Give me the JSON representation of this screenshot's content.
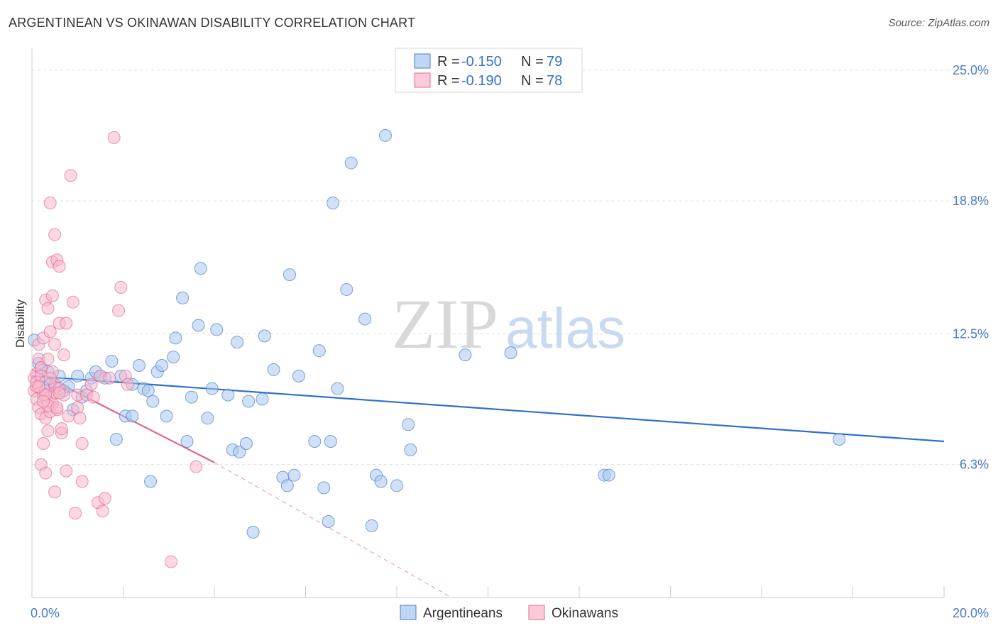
{
  "title": "ARGENTINEAN VS OKINAWAN DISABILITY CORRELATION CHART",
  "source": "Source: ZipAtlas.com",
  "watermark": {
    "zip": "ZIP",
    "atlas": "atlas"
  },
  "legend": {
    "rows": [
      {
        "r_label": "R = ",
        "r_value": "-0.150",
        "n_label": "N = ",
        "n_value": "79",
        "color": "#a9c8f0",
        "stroke": "#4a7cc9"
      },
      {
        "r_label": "R = ",
        "r_value": "-0.190",
        "n_label": "N = ",
        "n_value": "78",
        "color": "#f8b8cc",
        "stroke": "#e06a92"
      }
    ]
  },
  "chart_data": {
    "type": "scatter",
    "title": "ARGENTINEAN VS OKINAWAN DISABILITY CORRELATION CHART",
    "ylabel": "Disability",
    "xlabel": "",
    "xlim": [
      0,
      20
    ],
    "ylim": [
      0,
      25.9
    ],
    "y_ticks": [
      {
        "value": 6.3,
        "label": "6.3%"
      },
      {
        "value": 12.5,
        "label": "12.5%"
      },
      {
        "value": 18.8,
        "label": "18.8%"
      },
      {
        "value": 25.0,
        "label": "25.0%"
      }
    ],
    "x_tick_labels": [
      {
        "value": 0,
        "label": "0.0%"
      },
      {
        "value": 20,
        "label": "20.0%"
      }
    ],
    "x_minor_ticks": [
      0,
      2,
      4,
      6,
      8,
      10,
      12,
      14,
      16,
      18,
      20
    ],
    "series": [
      {
        "name": "Argentineans",
        "color": "#a9c8f0",
        "stroke": "#4a7cc9",
        "trend": {
          "x": [
            0,
            20
          ],
          "y": [
            10.5,
            7.4
          ],
          "color": "#2f6fcc",
          "dashed_from": null
        },
        "points": [
          [
            0.05,
            12.2
          ],
          [
            0.15,
            11.1
          ],
          [
            0.2,
            10.9
          ],
          [
            0.3,
            10.2
          ],
          [
            0.35,
            10.7
          ],
          [
            0.4,
            10.1
          ],
          [
            0.5,
            10.0
          ],
          [
            0.6,
            10.5
          ],
          [
            0.7,
            9.8
          ],
          [
            0.8,
            10.0
          ],
          [
            0.9,
            8.9
          ],
          [
            1.0,
            10.5
          ],
          [
            1.1,
            9.5
          ],
          [
            1.2,
            9.8
          ],
          [
            1.3,
            10.4
          ],
          [
            1.4,
            10.7
          ],
          [
            1.5,
            10.5
          ],
          [
            1.6,
            10.4
          ],
          [
            1.75,
            11.2
          ],
          [
            1.85,
            7.5
          ],
          [
            1.95,
            10.5
          ],
          [
            2.05,
            8.6
          ],
          [
            2.2,
            10.1
          ],
          [
            2.2,
            8.6
          ],
          [
            2.35,
            11.0
          ],
          [
            2.45,
            9.9
          ],
          [
            2.55,
            9.8
          ],
          [
            2.6,
            5.5
          ],
          [
            2.65,
            9.3
          ],
          [
            2.75,
            10.7
          ],
          [
            2.85,
            11.0
          ],
          [
            2.95,
            8.6
          ],
          [
            3.1,
            11.4
          ],
          [
            3.15,
            12.3
          ],
          [
            3.3,
            14.2
          ],
          [
            3.4,
            7.4
          ],
          [
            3.5,
            9.5
          ],
          [
            3.65,
            12.9
          ],
          [
            3.7,
            15.6
          ],
          [
            3.85,
            8.5
          ],
          [
            3.95,
            9.9
          ],
          [
            4.05,
            12.7
          ],
          [
            4.3,
            9.6
          ],
          [
            4.4,
            7.0
          ],
          [
            4.55,
            6.9
          ],
          [
            4.5,
            12.1
          ],
          [
            4.7,
            7.3
          ],
          [
            4.75,
            9.3
          ],
          [
            4.85,
            3.1
          ],
          [
            5.05,
            9.4
          ],
          [
            5.1,
            12.4
          ],
          [
            5.3,
            10.8
          ],
          [
            5.5,
            5.7
          ],
          [
            5.6,
            5.3
          ],
          [
            5.65,
            15.3
          ],
          [
            5.75,
            5.8
          ],
          [
            5.85,
            10.5
          ],
          [
            6.2,
            7.4
          ],
          [
            6.3,
            11.7
          ],
          [
            6.4,
            5.2
          ],
          [
            6.5,
            3.6
          ],
          [
            6.55,
            7.4
          ],
          [
            6.6,
            18.7
          ],
          [
            6.7,
            9.9
          ],
          [
            6.9,
            14.6
          ],
          [
            7.0,
            20.6
          ],
          [
            7.3,
            13.2
          ],
          [
            7.45,
            3.4
          ],
          [
            7.55,
            5.8
          ],
          [
            7.65,
            5.5
          ],
          [
            7.75,
            21.9
          ],
          [
            8.0,
            5.3
          ],
          [
            8.25,
            8.2
          ],
          [
            8.3,
            7.0
          ],
          [
            9.5,
            11.5
          ],
          [
            10.5,
            11.6
          ],
          [
            12.55,
            5.8
          ],
          [
            12.65,
            5.8
          ],
          [
            17.7,
            7.5
          ]
        ]
      },
      {
        "name": "Okinawans",
        "color": "#f8b8cc",
        "stroke": "#e06a92",
        "trend": {
          "x": [
            0,
            4.0
          ],
          "y": [
            10.8,
            6.4
          ],
          "color": "#e0638e",
          "dashed_to": [
            9.2,
            0.0
          ]
        },
        "points": [
          [
            0.05,
            10.4
          ],
          [
            0.05,
            9.8
          ],
          [
            0.1,
            10.0
          ],
          [
            0.1,
            9.4
          ],
          [
            0.1,
            10.6
          ],
          [
            0.15,
            12.0
          ],
          [
            0.15,
            9.0
          ],
          [
            0.15,
            11.3
          ],
          [
            0.2,
            10.9
          ],
          [
            0.2,
            6.3
          ],
          [
            0.2,
            8.7
          ],
          [
            0.25,
            12.3
          ],
          [
            0.25,
            9.6
          ],
          [
            0.25,
            7.3
          ],
          [
            0.3,
            5.9
          ],
          [
            0.3,
            14.1
          ],
          [
            0.3,
            8.5
          ],
          [
            0.3,
            9.8
          ],
          [
            0.35,
            13.7
          ],
          [
            0.35,
            7.9
          ],
          [
            0.35,
            11.3
          ],
          [
            0.4,
            18.7
          ],
          [
            0.4,
            12.6
          ],
          [
            0.4,
            9.5
          ],
          [
            0.4,
            8.8
          ],
          [
            0.45,
            15.9
          ],
          [
            0.45,
            14.3
          ],
          [
            0.45,
            10.7
          ],
          [
            0.45,
            9.2
          ],
          [
            0.5,
            17.2
          ],
          [
            0.5,
            12.0
          ],
          [
            0.5,
            10.1
          ],
          [
            0.5,
            9.7
          ],
          [
            0.5,
            5.0
          ],
          [
            0.55,
            16.0
          ],
          [
            0.55,
            8.9
          ],
          [
            0.6,
            15.7
          ],
          [
            0.6,
            13.0
          ],
          [
            0.6,
            9.9
          ],
          [
            0.65,
            7.8
          ],
          [
            0.65,
            8.0
          ],
          [
            0.7,
            9.6
          ],
          [
            0.7,
            11.5
          ],
          [
            0.75,
            13.0
          ],
          [
            0.75,
            6.0
          ],
          [
            0.8,
            8.6
          ],
          [
            0.85,
            20.0
          ],
          [
            0.9,
            14.0
          ],
          [
            0.95,
            4.0
          ],
          [
            1.0,
            9.0
          ],
          [
            1.0,
            9.6
          ],
          [
            1.05,
            8.5
          ],
          [
            1.1,
            5.5
          ],
          [
            1.1,
            7.3
          ],
          [
            1.2,
            9.6
          ],
          [
            1.3,
            10.1
          ],
          [
            1.35,
            9.5
          ],
          [
            1.45,
            4.5
          ],
          [
            1.5,
            10.5
          ],
          [
            1.55,
            4.1
          ],
          [
            1.6,
            4.7
          ],
          [
            1.7,
            10.4
          ],
          [
            1.8,
            21.8
          ],
          [
            1.9,
            13.6
          ],
          [
            1.95,
            14.7
          ],
          [
            2.05,
            10.5
          ],
          [
            2.1,
            10.1
          ],
          [
            3.05,
            1.7
          ],
          [
            3.6,
            6.2
          ],
          [
            0.1,
            10.2
          ],
          [
            0.2,
            10.5
          ],
          [
            0.3,
            9.6
          ],
          [
            0.15,
            10.0
          ],
          [
            0.35,
            9.1
          ],
          [
            0.25,
            9.3
          ],
          [
            0.4,
            10.4
          ],
          [
            0.55,
            9.0
          ],
          [
            0.6,
            9.7
          ]
        ]
      }
    ]
  },
  "bottom_legend": [
    {
      "label": "Argentineans",
      "color": "#a9c8f0",
      "stroke": "#4a7cc9"
    },
    {
      "label": "Okinawans",
      "color": "#f8b8cc",
      "stroke": "#e06a92"
    }
  ]
}
